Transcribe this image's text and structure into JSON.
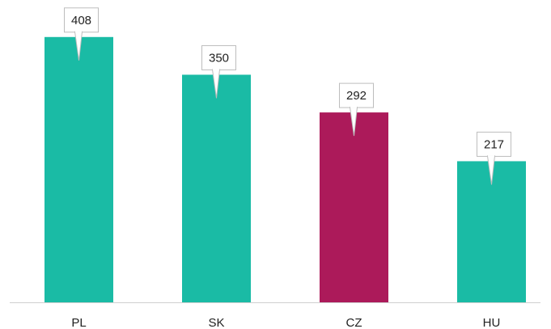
{
  "chart_data": {
    "type": "bar",
    "categories": [
      "PL",
      "SK",
      "CZ",
      "HU"
    ],
    "values": [
      408,
      350,
      292,
      217
    ],
    "colors": [
      "#1abba5",
      "#1abba5",
      "#ac1a5a",
      "#1abba5"
    ],
    "ylim": [
      0,
      450
    ]
  }
}
